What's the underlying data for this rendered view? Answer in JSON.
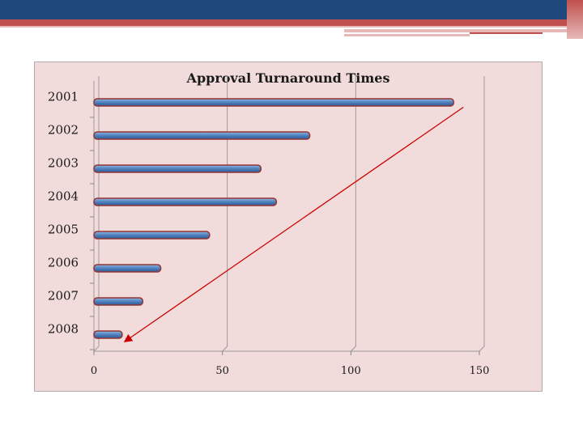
{
  "slide": {
    "colors": {
      "navy": "#1f497d",
      "red": "#c0504d",
      "pink": "#e6b9b8",
      "chart_bg": "#f2dcdb"
    }
  },
  "chart_data": {
    "type": "bar",
    "orientation": "horizontal",
    "title": "Approval Turnaround Times",
    "categories": [
      "2001",
      "2002",
      "2003",
      "2004",
      "2005",
      "2006",
      "2007",
      "2008"
    ],
    "values": [
      140,
      84,
      65,
      71,
      45,
      26,
      19,
      11
    ],
    "xlabel": "",
    "ylabel": "",
    "xlim": [
      0,
      150
    ],
    "xticks": [
      "0",
      "50",
      "100",
      "150"
    ],
    "grid": "vertical",
    "legend": "none",
    "bar_color": "#4f81bd",
    "bar_outline": "#943634",
    "annotation": {
      "type": "arrow",
      "from_category": "2001",
      "to_category": "2008",
      "color": "#cc0000"
    }
  }
}
